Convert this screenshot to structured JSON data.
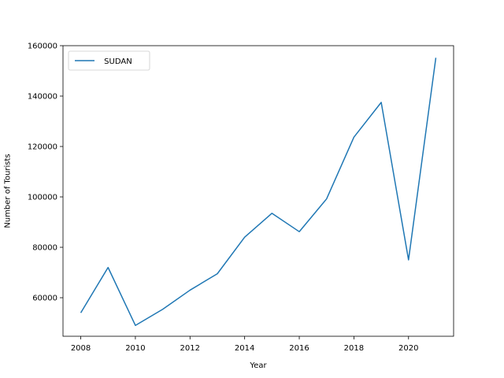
{
  "chart_data": {
    "type": "line",
    "title": "",
    "xlabel": "Year",
    "ylabel": "Number of Tourists",
    "xlim": [
      2007.35,
      2021.65
    ],
    "ylim": [
      44700,
      160000
    ],
    "x_ticks": [
      2008,
      2010,
      2012,
      2014,
      2016,
      2018,
      2020
    ],
    "y_ticks": [
      60000,
      80000,
      100000,
      120000,
      140000,
      160000
    ],
    "grid": false,
    "legend_position": "top-left",
    "series": [
      {
        "name": " SUDAN",
        "color": "#1f77b4",
        "x": [
          2008,
          2009,
          2010,
          2011,
          2012,
          2013,
          2014,
          2015,
          2016,
          2017,
          2018,
          2019,
          2020,
          2021
        ],
        "y": [
          54000,
          72000,
          49000,
          55400,
          63000,
          69500,
          84000,
          93500,
          86200,
          99200,
          123700,
          137500,
          75000,
          155200
        ]
      }
    ]
  }
}
